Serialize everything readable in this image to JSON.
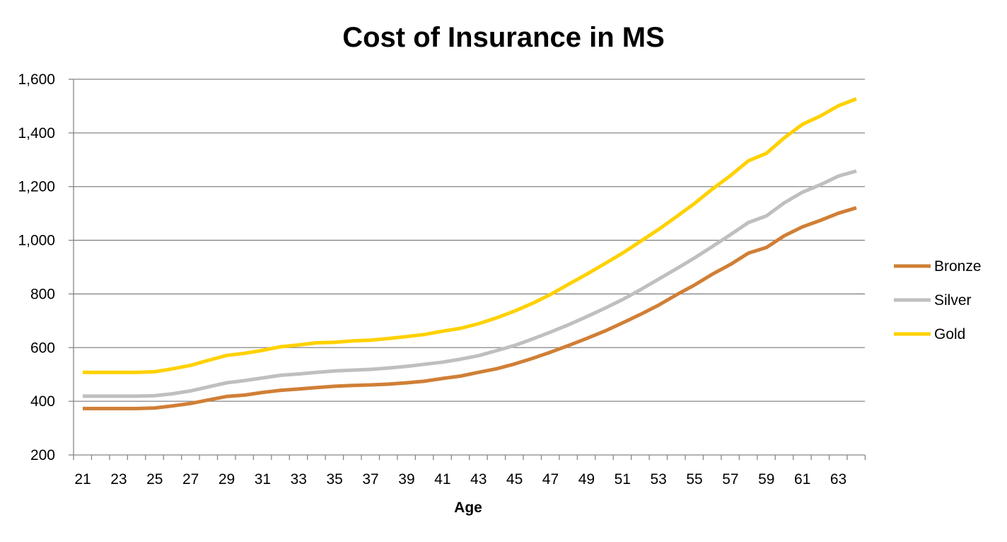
{
  "chart_data": {
    "type": "line",
    "title": "Cost of Insurance in MS",
    "xlabel": "Age",
    "ylabel": "",
    "ylim": [
      200,
      1600
    ],
    "yticks": [
      "200",
      "400",
      "600",
      "800",
      "1,000",
      "1,200",
      "1,400",
      "1,600"
    ],
    "ytick_values": [
      200,
      400,
      600,
      800,
      1000,
      1200,
      1400,
      1600
    ],
    "xticks": [
      "21",
      "23",
      "25",
      "27",
      "29",
      "31",
      "33",
      "35",
      "37",
      "39",
      "41",
      "43",
      "45",
      "47",
      "49",
      "51",
      "53",
      "55",
      "57",
      "59",
      "61",
      "63"
    ],
    "x": [
      21,
      22,
      23,
      24,
      25,
      26,
      27,
      28,
      29,
      30,
      31,
      32,
      33,
      34,
      35,
      36,
      37,
      38,
      39,
      40,
      41,
      42,
      43,
      44,
      45,
      46,
      47,
      48,
      49,
      50,
      51,
      52,
      53,
      54,
      55,
      56,
      57,
      58,
      59,
      60,
      61,
      62,
      63,
      64
    ],
    "grid": true,
    "legend_position": "right",
    "series": [
      {
        "name": "Bronze",
        "color": "#D07F36",
        "values": [
          373,
          373,
          373,
          373,
          375,
          383,
          392,
          405,
          418,
          423,
          433,
          441,
          446,
          451,
          456,
          459,
          461,
          464,
          469,
          475,
          485,
          494,
          508,
          521,
          539,
          560,
          583,
          608,
          634,
          661,
          692,
          724,
          758,
          797,
          833,
          874,
          910,
          952,
          973,
          1017,
          1050,
          1074,
          1101,
          1121
        ]
      },
      {
        "name": "Silver",
        "color": "#BFBFBF",
        "values": [
          419,
          419,
          419,
          419,
          421,
          428,
          439,
          454,
          469,
          477,
          487,
          497,
          502,
          508,
          513,
          516,
          519,
          524,
          530,
          538,
          546,
          557,
          570,
          589,
          608,
          632,
          658,
          685,
          715,
          746,
          779,
          816,
          855,
          894,
          934,
          977,
          1021,
          1066,
          1091,
          1140,
          1179,
          1207,
          1239,
          1258
        ]
      },
      {
        "name": "Gold",
        "color": "#FFD100",
        "values": [
          508,
          508,
          508,
          508,
          510,
          521,
          534,
          553,
          571,
          579,
          590,
          603,
          610,
          618,
          620,
          625,
          628,
          634,
          641,
          649,
          661,
          672,
          689,
          711,
          736,
          765,
          798,
          836,
          873,
          912,
          952,
          996,
          1040,
          1088,
          1137,
          1191,
          1241,
          1296,
          1324,
          1382,
          1432,
          1463,
          1501,
          1527
        ]
      }
    ]
  }
}
